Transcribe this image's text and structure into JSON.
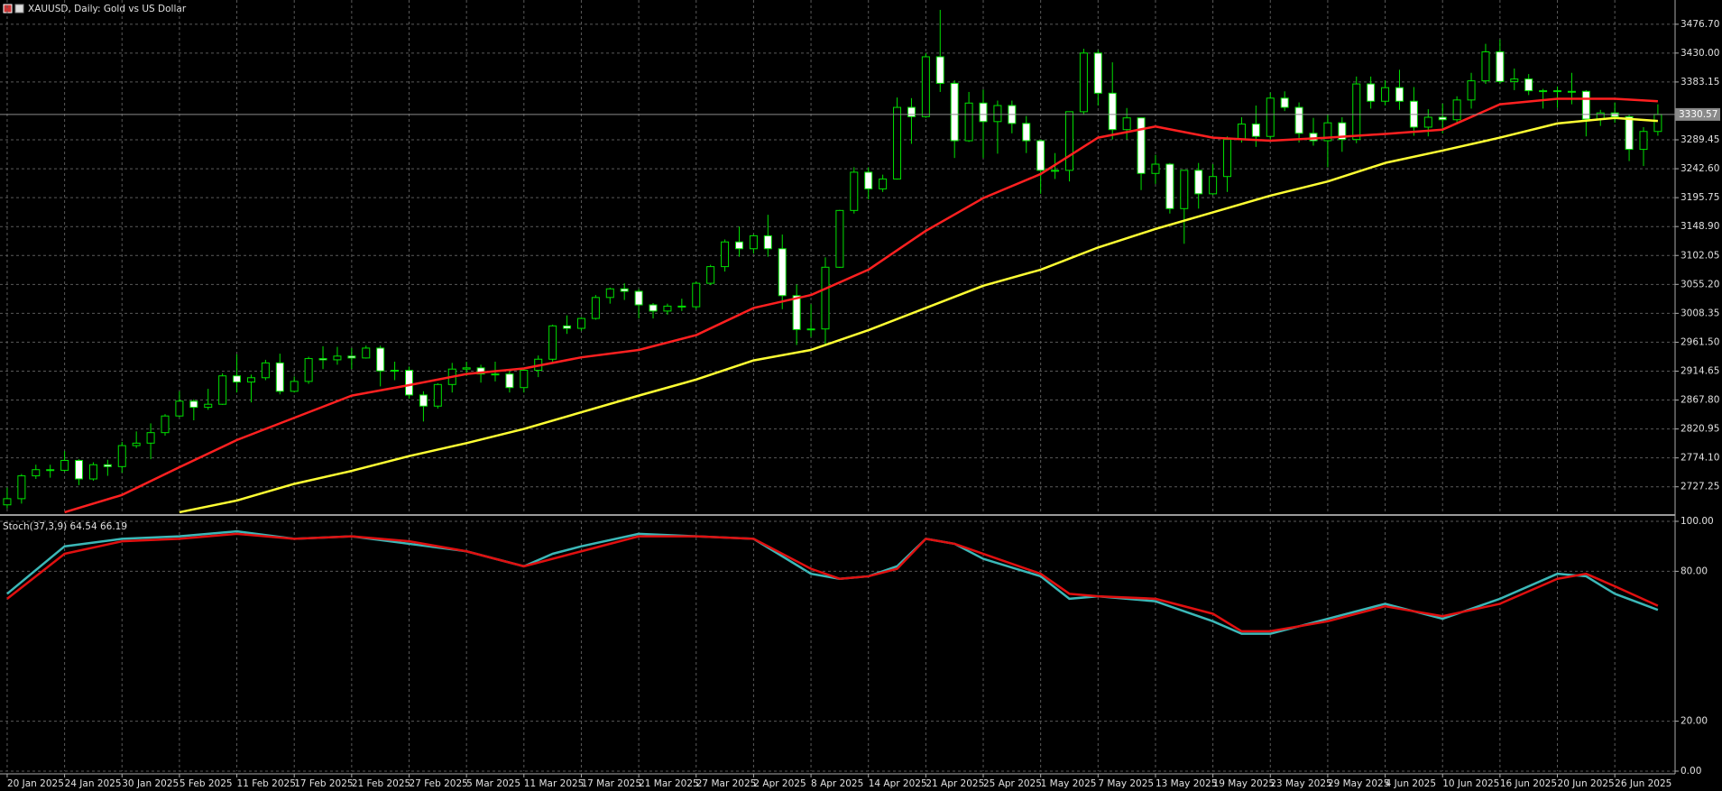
{
  "header": {
    "symbol": "XAUUSD, Daily:  Gold vs US Dollar"
  },
  "chart_data": [
    {
      "type": "candlestick",
      "categories": [
        "20 Jan 2025",
        null,
        null,
        null,
        "24 Jan 2025",
        null,
        null,
        null,
        "30 Jan 2025",
        null,
        null,
        null,
        "5 Feb 2025",
        null,
        null,
        null,
        "11 Feb 2025",
        null,
        null,
        null,
        "17 Feb 2025",
        null,
        null,
        null,
        "21 Feb 2025",
        null,
        null,
        null,
        "27 Feb 2025",
        null,
        null,
        null,
        "5 Mar 2025",
        null,
        null,
        null,
        "11 Mar 2025",
        null,
        null,
        null,
        "17 Mar 2025",
        null,
        null,
        null,
        "21 Mar 2025",
        null,
        null,
        null,
        "27 Mar 2025",
        null,
        null,
        null,
        "2 Apr 2025",
        null,
        null,
        null,
        "8 Apr 2025",
        null,
        null,
        null,
        "14 Apr 2025",
        null,
        null,
        null,
        "21 Apr 2025",
        null,
        null,
        null,
        "25 Apr 2025",
        null,
        null,
        null,
        "1 May 2025",
        null,
        null,
        null,
        "7 May 2025",
        null,
        null,
        null,
        "13 May 2025",
        null,
        null,
        null,
        "19 May 2025",
        null,
        null,
        null,
        "23 May 2025",
        null,
        null,
        null,
        "29 May 2025",
        null,
        null,
        null,
        "4 Jun 2025",
        null,
        null,
        null,
        "10 Jun 2025",
        null,
        null,
        null,
        "16 Jun 2025",
        null,
        null,
        null,
        "20 Jun 2025",
        null,
        null,
        null,
        "26 Jun 2025",
        null,
        null,
        null
      ],
      "ohlc": [
        [
          2698,
          2726,
          2692,
          2708
        ],
        [
          2708,
          2748,
          2700,
          2745
        ],
        [
          2745,
          2763,
          2740,
          2755
        ],
        [
          2755,
          2763,
          2742,
          2754
        ],
        [
          2754,
          2785,
          2752,
          2770
        ],
        [
          2770,
          2772,
          2730,
          2740
        ],
        [
          2740,
          2767,
          2737,
          2763
        ],
        [
          2763,
          2771,
          2745,
          2760
        ],
        [
          2760,
          2800,
          2750,
          2794
        ],
        [
          2794,
          2817,
          2790,
          2798
        ],
        [
          2798,
          2830,
          2772,
          2815
        ],
        [
          2815,
          2845,
          2810,
          2842
        ],
        [
          2842,
          2882,
          2840,
          2866
        ],
        [
          2866,
          2869,
          2835,
          2856
        ],
        [
          2856,
          2886,
          2852,
          2861
        ],
        [
          2861,
          2911,
          2860,
          2907
        ],
        [
          2907,
          2942,
          2880,
          2897
        ],
        [
          2897,
          2909,
          2864,
          2904
        ],
        [
          2904,
          2933,
          2900,
          2928
        ],
        [
          2928,
          2943,
          2877,
          2882
        ],
        [
          2882,
          2906,
          2880,
          2898
        ],
        [
          2898,
          2938,
          2894,
          2935
        ],
        [
          2935,
          2955,
          2918,
          2933
        ],
        [
          2933,
          2954,
          2925,
          2939
        ],
        [
          2939,
          2952,
          2918,
          2936
        ],
        [
          2936,
          2956,
          2935,
          2952
        ],
        [
          2952,
          2956,
          2890,
          2915
        ],
        [
          2915,
          2930,
          2900,
          2916
        ],
        [
          2916,
          2922,
          2870,
          2876
        ],
        [
          2876,
          2882,
          2833,
          2858
        ],
        [
          2858,
          2895,
          2854,
          2893
        ],
        [
          2893,
          2928,
          2880,
          2918
        ],
        [
          2918,
          2930,
          2907,
          2920
        ],
        [
          2920,
          2925,
          2896,
          2910
        ],
        [
          2910,
          2930,
          2898,
          2910
        ],
        [
          2910,
          2915,
          2880,
          2888
        ],
        [
          2888,
          2920,
          2880,
          2916
        ],
        [
          2916,
          2940,
          2905,
          2934
        ],
        [
          2934,
          2990,
          2930,
          2988
        ],
        [
          2988,
          3005,
          2975,
          2984
        ],
        [
          2984,
          3002,
          2980,
          3000
        ],
        [
          3000,
          3038,
          2998,
          3034
        ],
        [
          3034,
          3050,
          3024,
          3048
        ],
        [
          3048,
          3057,
          3030,
          3044
        ],
        [
          3044,
          3048,
          3000,
          3022
        ],
        [
          3022,
          3025,
          3000,
          3012
        ],
        [
          3012,
          3024,
          3006,
          3020
        ],
        [
          3020,
          3032,
          3012,
          3019
        ],
        [
          3019,
          3060,
          3015,
          3057
        ],
        [
          3057,
          3087,
          3054,
          3084
        ],
        [
          3084,
          3128,
          3076,
          3124
        ],
        [
          3124,
          3149,
          3100,
          3113
        ],
        [
          3113,
          3136,
          3105,
          3134
        ],
        [
          3134,
          3168,
          3100,
          3113
        ],
        [
          3113,
          3136,
          3015,
          3037
        ],
        [
          3037,
          3055,
          2957,
          2982
        ],
        [
          2982,
          3023,
          2970,
          2983
        ],
        [
          2983,
          3099,
          2957,
          3083
        ],
        [
          3083,
          3176,
          3082,
          3175
        ],
        [
          3175,
          3245,
          3170,
          3237
        ],
        [
          3237,
          3245,
          3193,
          3210
        ],
        [
          3210,
          3233,
          3205,
          3226
        ],
        [
          3226,
          3358,
          3225,
          3342
        ],
        [
          3342,
          3357,
          3283,
          3327
        ],
        [
          3327,
          3430,
          3325,
          3424
        ],
        [
          3424,
          3500,
          3367,
          3381
        ],
        [
          3381,
          3386,
          3260,
          3288
        ],
        [
          3288,
          3367,
          3286,
          3349
        ],
        [
          3349,
          3371,
          3260,
          3319
        ],
        [
          3319,
          3353,
          3267,
          3345
        ],
        [
          3345,
          3353,
          3300,
          3316
        ],
        [
          3316,
          3328,
          3268,
          3288
        ],
        [
          3288,
          3290,
          3202,
          3240
        ],
        [
          3240,
          3268,
          3226,
          3240
        ],
        [
          3240,
          3335,
          3222,
          3335
        ],
        [
          3335,
          3437,
          3330,
          3430
        ],
        [
          3430,
          3435,
          3345,
          3365
        ],
        [
          3365,
          3415,
          3290,
          3306
        ],
        [
          3306,
          3341,
          3290,
          3325
        ],
        [
          3325,
          3325,
          3208,
          3235
        ],
        [
          3235,
          3265,
          3218,
          3250
        ],
        [
          3250,
          3252,
          3170,
          3178
        ],
        [
          3178,
          3240,
          3121,
          3240
        ],
        [
          3240,
          3252,
          3178,
          3202
        ],
        [
          3202,
          3250,
          3200,
          3230
        ],
        [
          3230,
          3295,
          3205,
          3290
        ],
        [
          3290,
          3326,
          3285,
          3315
        ],
        [
          3315,
          3345,
          3278,
          3295
        ],
        [
          3295,
          3366,
          3288,
          3357
        ],
        [
          3357,
          3368,
          3336,
          3342
        ],
        [
          3342,
          3350,
          3285,
          3300
        ],
        [
          3300,
          3325,
          3280,
          3288
        ],
        [
          3288,
          3330,
          3245,
          3317
        ],
        [
          3317,
          3326,
          3270,
          3290
        ],
        [
          3290,
          3392,
          3284,
          3380
        ],
        [
          3380,
          3392,
          3340,
          3352
        ],
        [
          3352,
          3386,
          3345,
          3374
        ],
        [
          3374,
          3403,
          3338,
          3352
        ],
        [
          3352,
          3375,
          3296,
          3310
        ],
        [
          3310,
          3339,
          3295,
          3326
        ],
        [
          3326,
          3348,
          3300,
          3322
        ],
        [
          3322,
          3360,
          3315,
          3354
        ],
        [
          3354,
          3398,
          3340,
          3385
        ],
        [
          3385,
          3445,
          3380,
          3432
        ],
        [
          3432,
          3452,
          3380,
          3384
        ],
        [
          3384,
          3405,
          3370,
          3388
        ],
        [
          3388,
          3396,
          3362,
          3369
        ],
        [
          3369,
          3372,
          3340,
          3369
        ],
        [
          3369,
          3376,
          3341,
          3368
        ],
        [
          3368,
          3398,
          3347,
          3368
        ],
        [
          3368,
          3370,
          3295,
          3323
        ],
        [
          3323,
          3338,
          3312,
          3333
        ],
        [
          3333,
          3350,
          3317,
          3327
        ],
        [
          3327,
          3330,
          3255,
          3274
        ],
        [
          3274,
          3310,
          3247,
          3303
        ],
        [
          3303,
          3347,
          3296,
          3330.57
        ]
      ],
      "wick_color": "#00e000",
      "bull_fill": "#000000",
      "bear_fill": "#ffffff",
      "xlim": [
        -0.5,
        116.2
      ],
      "ylim": [
        2683,
        3516
      ],
      "yticks": [
        {
          "value": 3476.7,
          "label": "3476.70"
        },
        {
          "value": 3430,
          "label": "3430.00"
        },
        3383.15,
        3289.45,
        {
          "value": 3242.6,
          "label": "3242.60"
        },
        3195.75,
        {
          "value": 3148.9,
          "label": "3148.90"
        },
        3102.05,
        {
          "value": 3055.2,
          "label": "3055.20"
        },
        3008.35,
        {
          "value": 2961.5,
          "label": "2961.50"
        },
        2914.65,
        {
          "value": 2867.8,
          "label": "2867.80"
        },
        2820.95,
        {
          "value": 2774.1,
          "label": "2774.10"
        },
        2727.25
      ],
      "grid": true,
      "price_line": 3330.57,
      "lines": [
        {
          "color": "#ff2020",
          "x": [
            4,
            8,
            12,
            16,
            20,
            24,
            28,
            32,
            36,
            40,
            44,
            48,
            52,
            56,
            60,
            64,
            68,
            72,
            76,
            80,
            84,
            88,
            92,
            96,
            100,
            104,
            108,
            112,
            115
          ],
          "values": [
            2686,
            2714,
            2759,
            2803,
            2839,
            2875,
            2892,
            2910,
            2919,
            2937,
            2949,
            2973,
            3017,
            3038,
            3079,
            3142,
            3195,
            3234,
            3293,
            3311,
            3293,
            3288,
            3293,
            3299,
            3306,
            3347,
            3356,
            3356,
            3352
          ]
        },
        {
          "color": "#ffff33",
          "x": [
            12,
            16,
            20,
            24,
            28,
            32,
            36,
            40,
            44,
            48,
            52,
            56,
            60,
            64,
            68,
            72,
            76,
            80,
            84,
            88,
            92,
            96,
            100,
            104,
            108,
            112,
            115
          ],
          "values": [
            2686,
            2705,
            2732,
            2753,
            2777,
            2798,
            2821,
            2848,
            2875,
            2901,
            2932,
            2949,
            2981,
            3017,
            3053,
            3079,
            3115,
            3145,
            3172,
            3199,
            3222,
            3252,
            3272,
            3293,
            3316,
            3325,
            3320
          ]
        }
      ]
    },
    {
      "type": "line",
      "title": "Stoch(37,3,9) 64.54 66.19",
      "ylim": [
        0,
        100
      ],
      "yticks": [
        {
          "value": 100,
          "label": "100.00"
        },
        {
          "value": 80,
          "label": "80.00"
        },
        {
          "value": 20,
          "label": "20.00"
        },
        {
          "value": 0,
          "label": "0.00"
        }
      ],
      "lines": [
        {
          "color": "#3cb8b8",
          "x": [
            0,
            4,
            8,
            12,
            16,
            20,
            24,
            28,
            32,
            36,
            38,
            40,
            44,
            48,
            52,
            56,
            58,
            60,
            62,
            64,
            66,
            68,
            72,
            74,
            76,
            80,
            84,
            86,
            88,
            92,
            96,
            100,
            104,
            108,
            110,
            112,
            115
          ],
          "values": [
            71,
            90,
            93,
            94,
            96,
            93,
            94,
            91,
            88,
            82,
            87,
            90,
            95,
            94,
            93,
            79,
            77,
            78,
            82,
            93,
            91,
            85,
            78,
            69,
            70,
            68,
            60,
            55,
            55,
            61,
            67,
            61,
            69,
            79,
            78,
            71,
            64.54
          ]
        },
        {
          "color": "#e01010",
          "x": [
            0,
            4,
            8,
            12,
            16,
            20,
            24,
            28,
            32,
            36,
            40,
            44,
            48,
            52,
            56,
            58,
            60,
            62,
            64,
            66,
            68,
            72,
            74,
            76,
            80,
            84,
            86,
            88,
            92,
            96,
            100,
            104,
            108,
            110,
            112,
            115
          ],
          "values": [
            69,
            87,
            92,
            93,
            95,
            93,
            94,
            92,
            88,
            82,
            88,
            94,
            94,
            93,
            81,
            77,
            78,
            81,
            93,
            91,
            87,
            79,
            71,
            70,
            69,
            63,
            56,
            56,
            60,
            66,
            62,
            67,
            77,
            79,
            74,
            66.19
          ]
        }
      ]
    }
  ]
}
